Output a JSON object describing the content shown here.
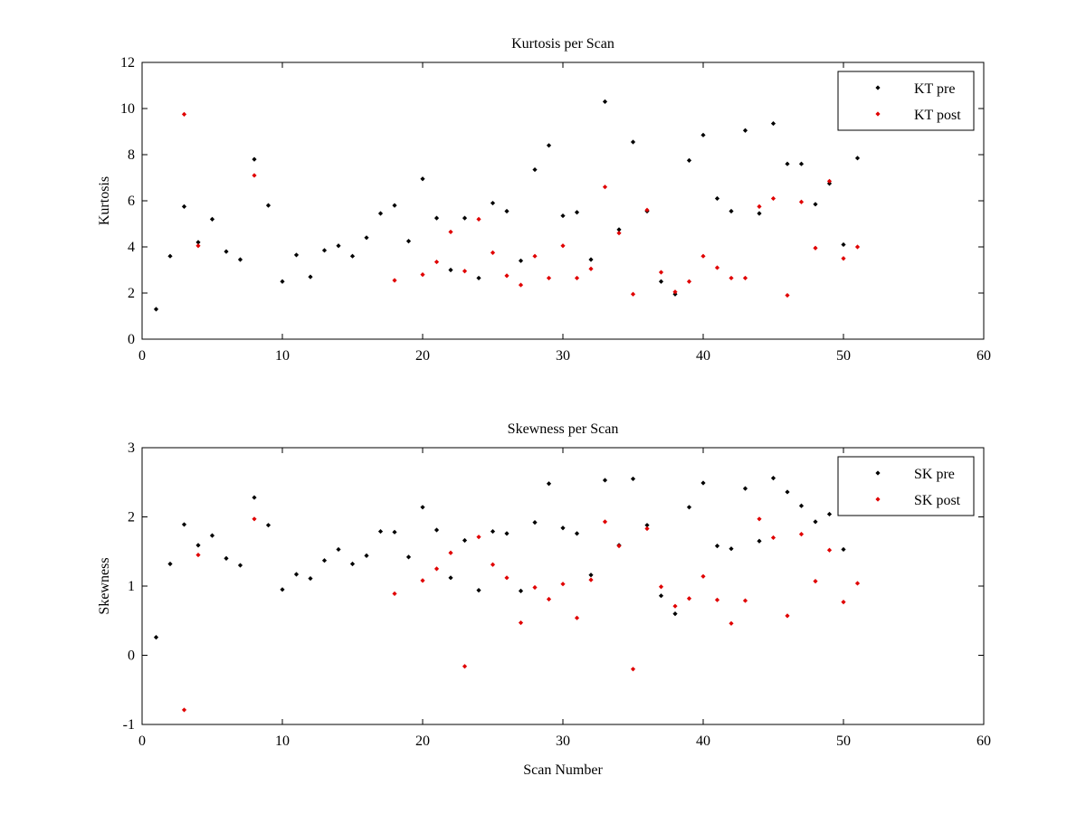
{
  "figure": {
    "background": "#ffffff",
    "colors": {
      "pre": "#000000",
      "post": "#e00000"
    }
  },
  "chart_data": [
    {
      "type": "scatter",
      "title": "Kurtosis per Scan",
      "xlabel": "",
      "ylabel": "Kurtosis",
      "xlim": [
        0,
        60
      ],
      "ylim": [
        0,
        12
      ],
      "xticks": [
        "0",
        "10",
        "20",
        "30",
        "40",
        "50",
        "60"
      ],
      "yticks": [
        "0",
        "2",
        "4",
        "6",
        "8",
        "10",
        "12"
      ],
      "grid": false,
      "legend": "top-right",
      "series": [
        {
          "name": "KT pre",
          "color": "#000000",
          "points": [
            [
              1,
              1.3
            ],
            [
              2,
              3.6
            ],
            [
              3,
              5.75
            ],
            [
              4,
              4.2
            ],
            [
              5,
              5.2
            ],
            [
              6,
              3.8
            ],
            [
              7,
              3.45
            ],
            [
              8,
              7.8
            ],
            [
              9,
              5.8
            ],
            [
              10,
              2.5
            ],
            [
              11,
              3.65
            ],
            [
              12,
              2.7
            ],
            [
              13,
              3.85
            ],
            [
              14,
              4.05
            ],
            [
              15,
              3.6
            ],
            [
              16,
              4.4
            ],
            [
              17,
              5.45
            ],
            [
              18,
              5.8
            ],
            [
              19,
              4.25
            ],
            [
              20,
              6.95
            ],
            [
              21,
              5.25
            ],
            [
              22,
              3.0
            ],
            [
              23,
              5.25
            ],
            [
              24,
              2.65
            ],
            [
              25,
              5.9
            ],
            [
              26,
              5.55
            ],
            [
              27,
              3.4
            ],
            [
              28,
              7.35
            ],
            [
              29,
              8.4
            ],
            [
              30,
              5.35
            ],
            [
              31,
              5.5
            ],
            [
              32,
              3.45
            ],
            [
              33,
              10.3
            ],
            [
              34,
              4.75
            ],
            [
              35,
              8.55
            ],
            [
              36,
              5.55
            ],
            [
              37,
              2.5
            ],
            [
              38,
              1.95
            ],
            [
              39,
              7.75
            ],
            [
              40,
              8.85
            ],
            [
              41,
              6.1
            ],
            [
              42,
              5.55
            ],
            [
              43,
              9.05
            ],
            [
              44,
              5.45
            ],
            [
              45,
              9.35
            ],
            [
              46,
              7.6
            ],
            [
              47,
              7.6
            ],
            [
              48,
              5.85
            ],
            [
              49,
              6.75
            ],
            [
              50,
              4.1
            ],
            [
              51,
              7.85
            ]
          ]
        },
        {
          "name": "KT post",
          "color": "#e00000",
          "points": [
            [
              3,
              9.75
            ],
            [
              4,
              4.05
            ],
            [
              8,
              7.1
            ],
            [
              18,
              2.55
            ],
            [
              20,
              2.8
            ],
            [
              21,
              3.35
            ],
            [
              22,
              4.65
            ],
            [
              23,
              2.95
            ],
            [
              24,
              5.2
            ],
            [
              25,
              3.75
            ],
            [
              26,
              2.75
            ],
            [
              27,
              2.35
            ],
            [
              28,
              3.6
            ],
            [
              29,
              2.65
            ],
            [
              30,
              4.05
            ],
            [
              31,
              2.65
            ],
            [
              32,
              3.05
            ],
            [
              33,
              6.6
            ],
            [
              34,
              4.6
            ],
            [
              35,
              1.95
            ],
            [
              36,
              5.6
            ],
            [
              37,
              2.9
            ],
            [
              38,
              2.05
            ],
            [
              39,
              2.5
            ],
            [
              40,
              3.6
            ],
            [
              41,
              3.1
            ],
            [
              42,
              2.65
            ],
            [
              43,
              2.65
            ],
            [
              44,
              5.75
            ],
            [
              45,
              6.1
            ],
            [
              46,
              1.9
            ],
            [
              47,
              5.95
            ],
            [
              48,
              3.95
            ],
            [
              49,
              6.85
            ],
            [
              50,
              3.5
            ],
            [
              51,
              4.0
            ]
          ]
        }
      ]
    },
    {
      "type": "scatter",
      "title": "Skewness per Scan",
      "xlabel": "Scan Number",
      "ylabel": "Skewness",
      "xlim": [
        0,
        60
      ],
      "ylim": [
        -1,
        3
      ],
      "xticks": [
        "0",
        "10",
        "20",
        "30",
        "40",
        "50",
        "60"
      ],
      "yticks": [
        "-1",
        "0",
        "1",
        "2",
        "3"
      ],
      "grid": false,
      "legend": "top-right",
      "series": [
        {
          "name": "SK pre",
          "color": "#000000",
          "points": [
            [
              1,
              0.26
            ],
            [
              2,
              1.32
            ],
            [
              3,
              1.89
            ],
            [
              4,
              1.59
            ],
            [
              5,
              1.73
            ],
            [
              6,
              1.4
            ],
            [
              7,
              1.3
            ],
            [
              8,
              2.28
            ],
            [
              9,
              1.88
            ],
            [
              10,
              0.95
            ],
            [
              11,
              1.17
            ],
            [
              12,
              1.11
            ],
            [
              13,
              1.37
            ],
            [
              14,
              1.53
            ],
            [
              15,
              1.32
            ],
            [
              16,
              1.44
            ],
            [
              17,
              1.79
            ],
            [
              18,
              1.78
            ],
            [
              19,
              1.42
            ],
            [
              20,
              2.14
            ],
            [
              21,
              1.81
            ],
            [
              22,
              1.12
            ],
            [
              23,
              1.66
            ],
            [
              24,
              0.94
            ],
            [
              25,
              1.79
            ],
            [
              26,
              1.76
            ],
            [
              27,
              0.93
            ],
            [
              28,
              1.92
            ],
            [
              29,
              2.48
            ],
            [
              30,
              1.84
            ],
            [
              31,
              1.76
            ],
            [
              32,
              1.16
            ],
            [
              33,
              2.53
            ],
            [
              34,
              1.59
            ],
            [
              35,
              2.55
            ],
            [
              36,
              1.88
            ],
            [
              37,
              0.86
            ],
            [
              38,
              0.6
            ],
            [
              39,
              2.14
            ],
            [
              40,
              2.49
            ],
            [
              41,
              1.58
            ],
            [
              42,
              1.54
            ],
            [
              43,
              2.41
            ],
            [
              44,
              1.65
            ],
            [
              45,
              2.56
            ],
            [
              46,
              2.36
            ],
            [
              47,
              2.16
            ],
            [
              48,
              1.93
            ],
            [
              49,
              2.04
            ],
            [
              50,
              1.53
            ]
          ]
        },
        {
          "name": "SK post",
          "color": "#e00000",
          "points": [
            [
              3,
              -0.79
            ],
            [
              4,
              1.45
            ],
            [
              8,
              1.97
            ],
            [
              18,
              0.89
            ],
            [
              20,
              1.08
            ],
            [
              21,
              1.25
            ],
            [
              22,
              1.48
            ],
            [
              23,
              -0.16
            ],
            [
              24,
              1.71
            ],
            [
              25,
              1.31
            ],
            [
              26,
              1.12
            ],
            [
              27,
              0.47
            ],
            [
              28,
              0.98
            ],
            [
              29,
              0.81
            ],
            [
              30,
              1.03
            ],
            [
              31,
              0.54
            ],
            [
              32,
              1.09
            ],
            [
              33,
              1.93
            ],
            [
              34,
              1.58
            ],
            [
              35,
              -0.2
            ],
            [
              36,
              1.83
            ],
            [
              37,
              0.99
            ],
            [
              38,
              0.71
            ],
            [
              39,
              0.82
            ],
            [
              40,
              1.14
            ],
            [
              41,
              0.8
            ],
            [
              42,
              0.46
            ],
            [
              43,
              0.79
            ],
            [
              44,
              1.97
            ],
            [
              45,
              1.7
            ],
            [
              46,
              0.57
            ],
            [
              47,
              1.75
            ],
            [
              48,
              1.07
            ],
            [
              49,
              1.52
            ],
            [
              50,
              0.77
            ],
            [
              51,
              1.04
            ]
          ]
        }
      ]
    }
  ]
}
